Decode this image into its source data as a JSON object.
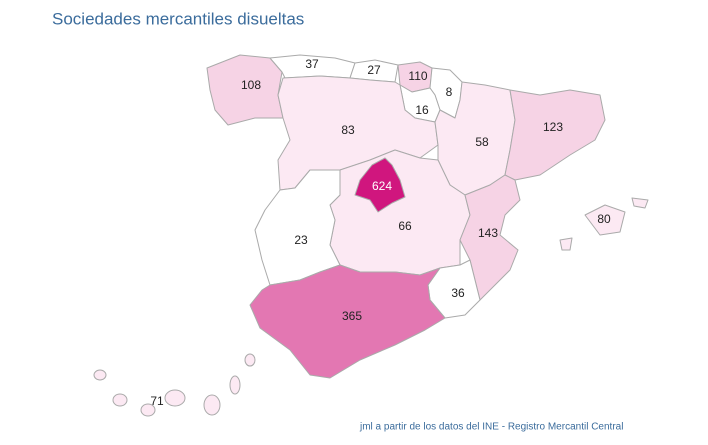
{
  "title": "Sociedades mercantiles disueltas",
  "regions": [
    {
      "value": 108,
      "color": "#f6d3e5"
    },
    {
      "value": 37,
      "color": "#ffffff"
    },
    {
      "value": 27,
      "color": "#ffffff"
    },
    {
      "value": 110,
      "color": "#f6d3e5"
    },
    {
      "value": 8,
      "color": "#ffffff"
    },
    {
      "value": 16,
      "color": "#ffffff"
    },
    {
      "value": 83,
      "color": "#fce9f3"
    },
    {
      "value": 58,
      "color": "#fce9f3"
    },
    {
      "value": 123,
      "color": "#f6d3e5"
    },
    {
      "value": 624,
      "color": "#d0167e"
    },
    {
      "value": 66,
      "color": "#fce9f3"
    },
    {
      "value": 143,
      "color": "#f6d3e5"
    },
    {
      "value": 80,
      "color": "#fce9f3"
    },
    {
      "value": 23,
      "color": "#ffffff"
    },
    {
      "value": 36,
      "color": "#ffffff"
    },
    {
      "value": 365,
      "color": "#e377b2"
    },
    {
      "value": 71,
      "color": "#fce9f3"
    }
  ],
  "source": "jml a partir de los datos del INE - Registro Mercantil Central"
}
